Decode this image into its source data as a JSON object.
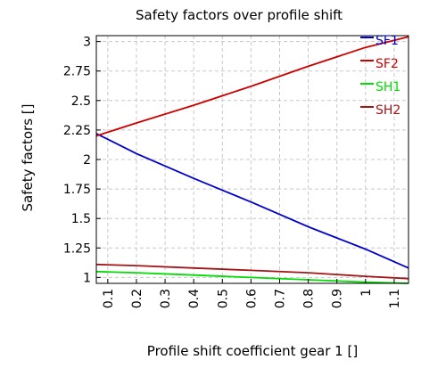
{
  "chart_data": {
    "type": "line",
    "title": "Safety factors over profile shift",
    "xlabel": "Profile shift coefficient gear 1 []",
    "ylabel": "Safety factors []",
    "xlim": [
      0.06,
      1.15
    ],
    "ylim": [
      0.95,
      3.05
    ],
    "x_ticks": [
      0.1,
      0.2,
      0.3,
      0.4,
      0.5,
      0.6,
      0.7,
      0.8,
      0.9,
      1,
      1.1
    ],
    "x_tick_labels": [
      "0.1",
      "0.2",
      "0.3",
      "0.4",
      "0.5",
      "0.6",
      "0.7",
      "0.8",
      "0.9",
      "1",
      "1.1"
    ],
    "y_ticks": [
      1,
      1.25,
      1.5,
      1.75,
      2,
      2.25,
      2.5,
      2.75,
      3
    ],
    "y_tick_labels": [
      "1",
      "1.25",
      "1.5",
      "1.75",
      "2",
      "2.25",
      "2.5",
      "2.75",
      "3"
    ],
    "grid": true,
    "legend_position": "top-right",
    "series": [
      {
        "name": "SF1",
        "color": "#0000cc",
        "x": [
          0.06,
          0.2,
          0.4,
          0.6,
          0.8,
          1.0,
          1.15
        ],
        "y": [
          2.22,
          2.05,
          1.84,
          1.64,
          1.43,
          1.24,
          1.08
        ]
      },
      {
        "name": "SF2",
        "color": "#cc0000",
        "x": [
          0.06,
          0.2,
          0.4,
          0.6,
          0.8,
          1.0,
          1.15
        ],
        "y": [
          2.2,
          2.31,
          2.46,
          2.62,
          2.79,
          2.95,
          3.04
        ]
      },
      {
        "name": "SH1",
        "color": "#00dd00",
        "x": [
          0.06,
          0.2,
          0.4,
          0.6,
          0.8,
          1.0,
          1.15
        ],
        "y": [
          1.05,
          1.04,
          1.02,
          1.0,
          0.98,
          0.96,
          0.95
        ]
      },
      {
        "name": "SH2",
        "color": "#a31515",
        "x": [
          0.06,
          0.2,
          0.4,
          0.6,
          0.8,
          1.0,
          1.15
        ],
        "y": [
          1.11,
          1.1,
          1.08,
          1.06,
          1.04,
          1.01,
          0.99
        ]
      }
    ]
  }
}
